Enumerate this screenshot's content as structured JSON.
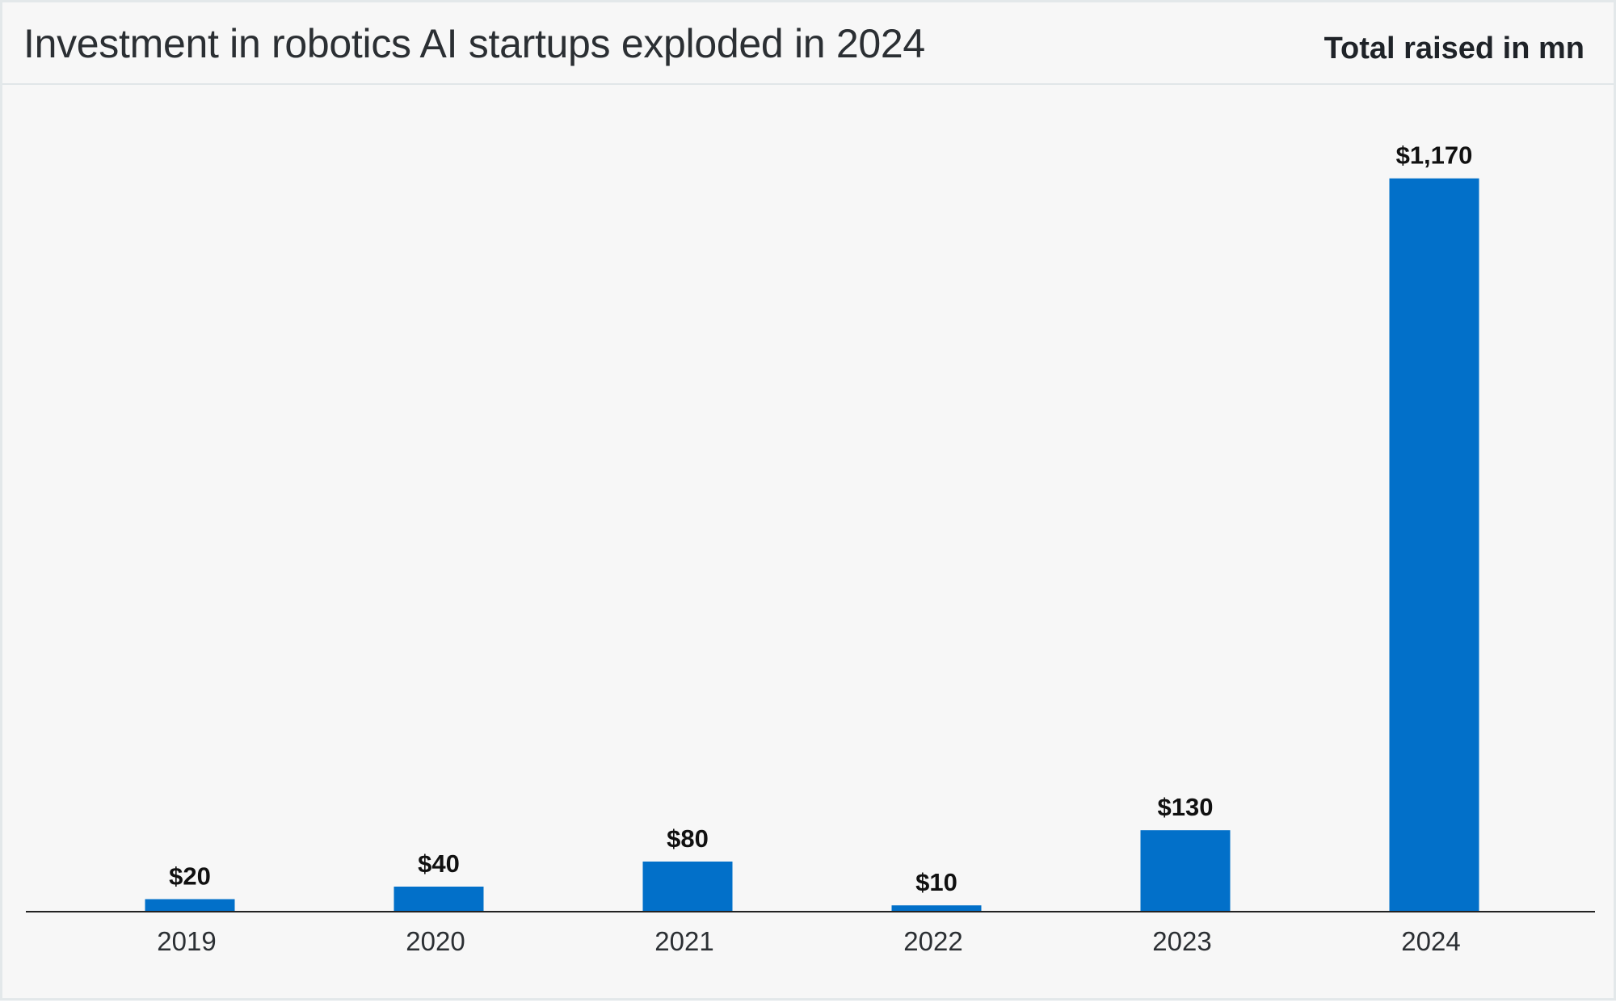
{
  "header": {
    "title": "Investment in robotics AI startups exploded in 2024",
    "unit_label": "Total raised in mn"
  },
  "colors": {
    "bar": "#0270c9",
    "background": "#f7f7f7",
    "text": "#2b2f33"
  },
  "chart_data": {
    "type": "bar",
    "title": "Investment in robotics AI startups exploded in 2024",
    "ylabel": "Total raised in mn",
    "xlabel": "",
    "categories": [
      "2019",
      "2020",
      "2021",
      "2022",
      "2023",
      "2024"
    ],
    "values": [
      20,
      40,
      80,
      10,
      130,
      1170
    ],
    "data_labels": [
      "$20",
      "$40",
      "$80",
      "$10",
      "$130",
      "$1,170"
    ],
    "ylim": [
      0,
      1300
    ],
    "grid": false,
    "legend": "none"
  }
}
